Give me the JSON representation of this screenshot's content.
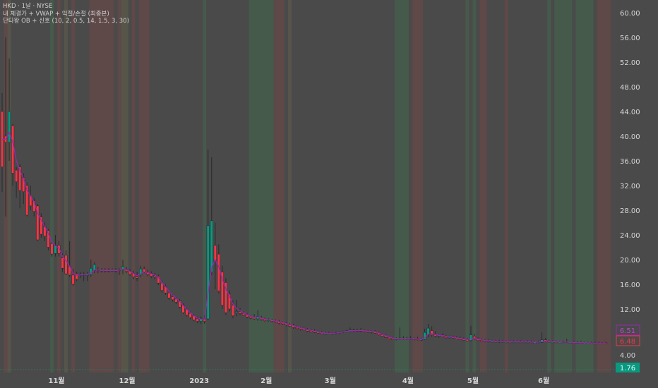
{
  "legend": {
    "symbol_line": "HKD · 1날 · NYSE",
    "indicator_1": "내 체결가 + VWAP + 익절/손절 (최종본)",
    "indicator_2": "단타왕 OB + 신호 (10, 2, 0.5, 14, 1.5, 3, 30)"
  },
  "colors": {
    "background": "#4a4a4a",
    "up": "#089981",
    "down": "#f23645",
    "vwap": "#9c27b0",
    "band_green": "#465a4c",
    "band_red": "#5e4848",
    "band_yellow": "#57554a",
    "last_price_tag": "#f23645",
    "vwap_tag": "#9c27b0",
    "level_tag": "#089981"
  },
  "chart_data": {
    "type": "candlestick",
    "title": "HKD · 1날 · NYSE",
    "ylim": [
      0,
      62
    ],
    "y_ticks": [
      "60.00",
      "56.00",
      "52.00",
      "48.00",
      "44.00",
      "40.00",
      "36.00",
      "32.00",
      "28.00",
      "24.00",
      "20.00",
      "16.00",
      "12.00"
    ],
    "y_tick_values": [
      60,
      56,
      52,
      48,
      44,
      40,
      36,
      32,
      28,
      24,
      20,
      16,
      12
    ],
    "x_ticks": [
      {
        "label": "11월",
        "bar": 15.3
      },
      {
        "label": "12월",
        "bar": 35.2
      },
      {
        "label": "2023",
        "bar": 55.5
      },
      {
        "label": "2월",
        "bar": 74.4
      },
      {
        "label": "3월",
        "bar": 92.4
      },
      {
        "label": "4월",
        "bar": 114.3
      },
      {
        "label": "5월",
        "bar": 132.6
      },
      {
        "label": "6월",
        "bar": 152.5
      }
    ],
    "price_tags": [
      {
        "label": "6.51",
        "value": 6.51,
        "kind": "vwap"
      },
      {
        "label": "6.48",
        "value": 6.48,
        "kind": "last"
      },
      {
        "label": "4.00",
        "value": 4.0,
        "kind": "plain"
      },
      {
        "label": "1.76",
        "value": 1.76,
        "kind": "level"
      }
    ],
    "level_line": 1.76,
    "bands": [
      {
        "type": "red",
        "from": 1,
        "to": 1
      },
      {
        "type": "yellow",
        "from": 2,
        "to": 2
      },
      {
        "type": "green",
        "from": 14,
        "to": 14
      },
      {
        "type": "red",
        "from": 16,
        "to": 16
      },
      {
        "type": "yellow",
        "from": 18,
        "to": 18
      },
      {
        "type": "red",
        "from": 20,
        "to": 20
      },
      {
        "type": "red",
        "from": 25,
        "to": 31
      },
      {
        "type": "red",
        "from": 33,
        "to": 33
      },
      {
        "type": "yellow",
        "from": 34,
        "to": 35
      },
      {
        "type": "red",
        "from": 37,
        "to": 37
      },
      {
        "type": "red",
        "from": 39,
        "to": 41
      },
      {
        "type": "green",
        "from": 57,
        "to": 57
      },
      {
        "type": "green",
        "from": 70,
        "to": 76
      },
      {
        "type": "red",
        "from": 77,
        "to": 79
      },
      {
        "type": "yellow",
        "from": 81,
        "to": 81
      },
      {
        "type": "green",
        "from": 111,
        "to": 114
      },
      {
        "type": "red",
        "from": 116,
        "to": 118
      },
      {
        "type": "green",
        "from": 131,
        "to": 131
      },
      {
        "type": "green",
        "from": 133,
        "to": 133
      },
      {
        "type": "red",
        "from": 135,
        "to": 136
      },
      {
        "type": "red",
        "from": 142,
        "to": 142
      },
      {
        "type": "green",
        "from": 154,
        "to": 154
      },
      {
        "type": "green",
        "from": 156,
        "to": 160
      },
      {
        "type": "green",
        "from": 162,
        "to": 166
      },
      {
        "type": "red",
        "from": 168,
        "to": 171
      }
    ],
    "candles_ohlc": [
      [
        44,
        47,
        31,
        35
      ],
      [
        40,
        56,
        27,
        39
      ],
      [
        39,
        52.6,
        36,
        44
      ],
      [
        41.7,
        42,
        32,
        34
      ],
      [
        34.5,
        35,
        30,
        32.6
      ],
      [
        35,
        35.5,
        28.3,
        31.2
      ],
      [
        33.3,
        34,
        29,
        31
      ],
      [
        32,
        32.5,
        27,
        27.2
      ],
      [
        30.4,
        32,
        28,
        28.7
      ],
      [
        29.5,
        30,
        27,
        27.8
      ],
      [
        28.7,
        29,
        23,
        23.2
      ],
      [
        26.9,
        27.5,
        23.5,
        24.1
      ],
      [
        25.3,
        26,
        23,
        23.8
      ],
      [
        24.7,
        25,
        21.5,
        22
      ],
      [
        22.6,
        23,
        20.5,
        20.9
      ],
      [
        21,
        24,
        20.5,
        22.3
      ],
      [
        22.3,
        23,
        20.5,
        21
      ],
      [
        20.3,
        21,
        18,
        18.6
      ],
      [
        20.7,
        21.5,
        17.5,
        17.7
      ],
      [
        18.9,
        23,
        17.2,
        17.5
      ],
      [
        17.5,
        18.5,
        15.8,
        16
      ],
      [
        17.7,
        18,
        16.5,
        16.8
      ],
      [
        17.5,
        18,
        17,
        17.6
      ],
      [
        17.7,
        18,
        16.5,
        17.7
      ],
      [
        17.5,
        18,
        16.5,
        17.6
      ],
      [
        17.6,
        20,
        17.2,
        18.6
      ],
      [
        18.2,
        19.6,
        17.8,
        19.2
      ],
      [
        18.4,
        18.8,
        17.8,
        18.2
      ],
      [
        18.2,
        18.6,
        17.9,
        18.3
      ],
      [
        18.3,
        18.6,
        17.9,
        18.2
      ],
      [
        18.2,
        18.6,
        17.9,
        18.3
      ],
      [
        18.3,
        18.6,
        18,
        18.3
      ],
      [
        18.3,
        18.6,
        17.9,
        18.2
      ],
      [
        18.2,
        18.6,
        17.5,
        18.4
      ],
      [
        18.4,
        20,
        17.6,
        18.9
      ],
      [
        18.4,
        18.8,
        17.8,
        18.1
      ],
      [
        18.1,
        18.5,
        17.4,
        17.6
      ],
      [
        17.8,
        18.2,
        16.8,
        17.2
      ],
      [
        17.2,
        18,
        16.5,
        17
      ],
      [
        17.5,
        19,
        17.2,
        18.5
      ],
      [
        18.5,
        18.9,
        17.8,
        18
      ],
      [
        18,
        18.4,
        17.3,
        17.6
      ],
      [
        17.8,
        18.1,
        17,
        17.3
      ],
      [
        17.4,
        17.8,
        16.8,
        17.2
      ],
      [
        17.3,
        17.6,
        15.9,
        16.2
      ],
      [
        16.2,
        16.6,
        14.7,
        15
      ],
      [
        15.6,
        16,
        14.3,
        14.6
      ],
      [
        14.6,
        15,
        13.5,
        13.8
      ],
      [
        14,
        14.4,
        13.2,
        13.5
      ],
      [
        13.6,
        13.9,
        12.8,
        13.1
      ],
      [
        13.3,
        13.6,
        12.1,
        12.3
      ],
      [
        12.6,
        12.9,
        11.2,
        11.4
      ],
      [
        11.9,
        12.2,
        10.8,
        11
      ],
      [
        11.3,
        11.6,
        10.3,
        10.6
      ],
      [
        10.9,
        11.2,
        10,
        10.2
      ],
      [
        10.4,
        10.8,
        9.7,
        10
      ],
      [
        10,
        10.8,
        9.6,
        10.4
      ],
      [
        10.4,
        11,
        9.6,
        10
      ],
      [
        10.4,
        37.8,
        10.2,
        25.5
      ],
      [
        18,
        36.6,
        17.5,
        26.3
      ],
      [
        22.3,
        26,
        15.2,
        19.8
      ],
      [
        20.9,
        22.5,
        14.5,
        14.9
      ],
      [
        18,
        19,
        12,
        12.6
      ],
      [
        16.3,
        17,
        11,
        11.4
      ],
      [
        14.4,
        15,
        11.6,
        12
      ],
      [
        12.6,
        13.4,
        10.5,
        10.9
      ],
      [
        11.4,
        13.5,
        10.8,
        11.6
      ],
      [
        11.6,
        12.2,
        11,
        11.3
      ],
      [
        11.3,
        11.6,
        10.9,
        11
      ],
      [
        11,
        11.3,
        10.5,
        10.7
      ],
      [
        10.7,
        11,
        10.3,
        10.5
      ],
      [
        10.6,
        11.2,
        10.2,
        10.4
      ],
      [
        10.4,
        11.8,
        10.1,
        10.8
      ],
      [
        10.6,
        10.9,
        10.1,
        10.3
      ],
      [
        10.3,
        10.6,
        9.9,
        10.1
      ],
      [
        10.1,
        10.5,
        9.9,
        10.3
      ],
      [
        10.2,
        10.4,
        9.8,
        10
      ],
      [
        10,
        10.3,
        9.7,
        9.9
      ],
      [
        9.9,
        10.2,
        9.5,
        9.7
      ],
      [
        9.8,
        10,
        9.4,
        9.6
      ],
      [
        9.6,
        9.9,
        9.2,
        9.4
      ],
      [
        9.4,
        9.7,
        9,
        9.2
      ],
      [
        9.3,
        9.6,
        8.8,
        9
      ],
      [
        9,
        9.3,
        8.7,
        8.9
      ],
      [
        8.9,
        9.1,
        8.5,
        8.7
      ],
      [
        8.8,
        9,
        8.5,
        8.6
      ],
      [
        8.6,
        8.9,
        8.3,
        8.5
      ],
      [
        8.5,
        8.8,
        8.2,
        8.4
      ],
      [
        8.4,
        8.7,
        8.1,
        8.2
      ],
      [
        8.3,
        8.5,
        8,
        8.1
      ],
      [
        8.1,
        8.4,
        7.9,
        8
      ],
      [
        8,
        8.3,
        7.8,
        8.1
      ],
      [
        8.1,
        8.3,
        7.9,
        8
      ],
      [
        8,
        8.2,
        7.8,
        8.1
      ],
      [
        8.1,
        8.3,
        7.9,
        8.2
      ],
      [
        8.2,
        8.4,
        8,
        8.3
      ],
      [
        8.3,
        8.5,
        8.1,
        8.4
      ],
      [
        8.4,
        8.6,
        8.2,
        8.5
      ],
      [
        8.4,
        9,
        8.2,
        8.6
      ],
      [
        8.6,
        8.8,
        8.3,
        8.5
      ],
      [
        8.5,
        8.8,
        8.3,
        8.6
      ],
      [
        8.6,
        8.9,
        8.3,
        8.5
      ],
      [
        8.5,
        8.7,
        8.2,
        8.4
      ],
      [
        8.4,
        8.6,
        8.1,
        8.3
      ],
      [
        8.3,
        8.5,
        8,
        8.4
      ],
      [
        8.4,
        8.6,
        8,
        8.1
      ],
      [
        8.1,
        8.3,
        7.7,
        7.8
      ],
      [
        7.8,
        8,
        7.5,
        7.6
      ],
      [
        7.6,
        7.9,
        7.3,
        7.4
      ],
      [
        7.4,
        7.6,
        7.1,
        7.2
      ],
      [
        7.2,
        7.5,
        7,
        7.1
      ],
      [
        7.1,
        7.4,
        6.9,
        7.2
      ],
      [
        7.2,
        9,
        7,
        7.3
      ],
      [
        7.3,
        7.6,
        7,
        7.2
      ],
      [
        7.2,
        7.5,
        7,
        7.3
      ],
      [
        7.3,
        7.6,
        7,
        7.1
      ],
      [
        7.1,
        7.4,
        6.9,
        7.2
      ],
      [
        7.2,
        7.5,
        6.9,
        7
      ],
      [
        7,
        7.3,
        6.8,
        7.1
      ],
      [
        7.1,
        8.8,
        7,
        8.2
      ],
      [
        7.8,
        9.6,
        7.4,
        8.9
      ],
      [
        8.5,
        9.2,
        7.5,
        7.8
      ],
      [
        7.8,
        8.4,
        7.4,
        7.6
      ],
      [
        7.6,
        8,
        7.3,
        7.8
      ],
      [
        7.8,
        8,
        7.4,
        7.5
      ],
      [
        7.5,
        7.8,
        7.2,
        7.4
      ],
      [
        7.4,
        7.7,
        7.2,
        7.5
      ],
      [
        7.5,
        7.7,
        7.2,
        7.3
      ],
      [
        7.3,
        7.6,
        7.1,
        7.2
      ],
      [
        7.2,
        7.5,
        7,
        7.1
      ],
      [
        7.1,
        7.4,
        6.9,
        7
      ],
      [
        7,
        7.3,
        6.8,
        6.9
      ],
      [
        6.9,
        9.3,
        6.8,
        7.8
      ],
      [
        7.6,
        8,
        7,
        7.1
      ],
      [
        7.1,
        7.4,
        6.8,
        6.9
      ],
      [
        6.9,
        7.2,
        6.7,
        6.8
      ],
      [
        6.8,
        7.1,
        6.6,
        6.9
      ],
      [
        6.9,
        7.1,
        6.6,
        6.8
      ],
      [
        6.8,
        7,
        6.6,
        6.8
      ],
      [
        6.8,
        7,
        6.6,
        6.7
      ],
      [
        6.7,
        7,
        6.5,
        6.8
      ],
      [
        6.8,
        7,
        6.6,
        6.7
      ],
      [
        6.7,
        6.9,
        6.5,
        6.7
      ],
      [
        6.7,
        6.9,
        6.5,
        6.6
      ],
      [
        6.6,
        6.9,
        6.5,
        6.7
      ],
      [
        6.7,
        6.9,
        6.5,
        6.7
      ],
      [
        6.7,
        6.9,
        6.5,
        6.6
      ],
      [
        6.6,
        6.8,
        6.5,
        6.7
      ],
      [
        6.7,
        6.9,
        6.5,
        6.7
      ],
      [
        6.7,
        6.9,
        6.5,
        6.6
      ],
      [
        6.6,
        6.8,
        6.5,
        6.6
      ],
      [
        6.6,
        6.9,
        6.5,
        6.7
      ],
      [
        6.6,
        8.2,
        6.5,
        7
      ],
      [
        7,
        7.3,
        6.7,
        6.8
      ],
      [
        6.8,
        7,
        6.6,
        6.7
      ],
      [
        6.7,
        6.9,
        6.5,
        6.7
      ],
      [
        6.7,
        6.9,
        6.5,
        6.6
      ],
      [
        6.6,
        6.8,
        6.5,
        6.6
      ],
      [
        6.6,
        6.9,
        6.5,
        6.7
      ],
      [
        6.7,
        7.2,
        6.5,
        6.6
      ],
      [
        6.6,
        6.8,
        6.5,
        6.6
      ],
      [
        6.6,
        6.8,
        6.4,
        6.5
      ],
      [
        6.5,
        6.8,
        6.4,
        6.6
      ],
      [
        6.6,
        6.8,
        6.4,
        6.5
      ],
      [
        6.5,
        6.7,
        6.4,
        6.5
      ],
      [
        6.5,
        6.7,
        6.4,
        6.5
      ],
      [
        6.5,
        6.7,
        6.3,
        6.4
      ],
      [
        6.4,
        6.7,
        6.3,
        6.5
      ],
      [
        6.5,
        6.7,
        6.3,
        6.4
      ],
      [
        6.4,
        6.6,
        6.3,
        6.5
      ],
      [
        6.5,
        6.7,
        6.4,
        6.48
      ]
    ]
  }
}
